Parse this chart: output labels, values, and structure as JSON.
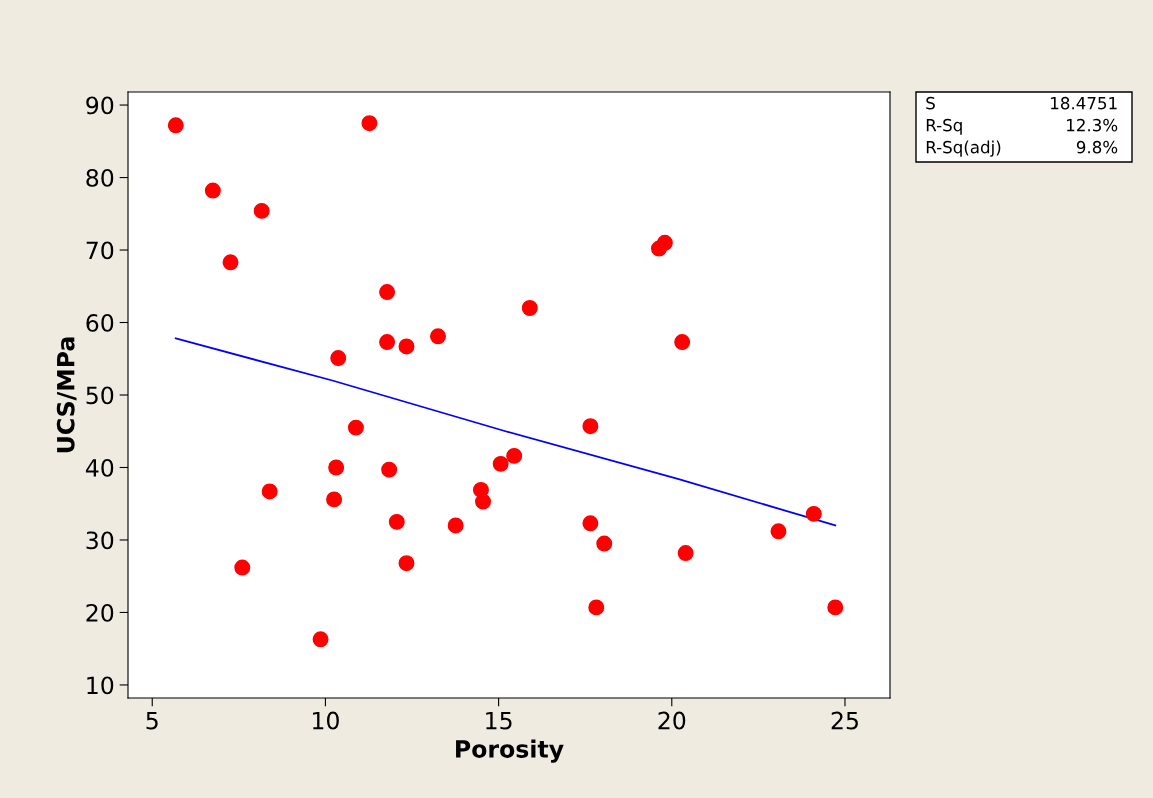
{
  "chart_data": {
    "type": "scatter",
    "xlabel": "Porosity",
    "ylabel": "UCS/MPa",
    "xlim": [
      4.3,
      26.3
    ],
    "ylim": [
      8.2,
      91.8
    ],
    "xticks": [
      5,
      10,
      15,
      20,
      25
    ],
    "yticks": [
      10,
      20,
      30,
      40,
      50,
      60,
      70,
      80,
      90
    ],
    "grid": false,
    "legend": false,
    "series": [
      {
        "marker": "circle",
        "color": "#ff0000",
        "x": [
          5.68,
          6.75,
          7.26,
          8.16,
          8.39,
          7.6,
          9.86,
          10.25,
          10.31,
          10.37,
          10.88,
          11.27,
          11.78,
          11.78,
          11.84,
          12.06,
          12.34,
          12.34,
          13.25,
          13.76,
          14.49,
          14.55,
          15.06,
          15.45,
          15.9,
          17.65,
          17.65,
          17.82,
          18.05,
          19.63,
          19.8,
          20.3,
          20.4,
          23.08,
          24.1,
          24.72
        ],
        "values": [
          87.2,
          78.2,
          68.3,
          75.4,
          36.7,
          26.2,
          16.3,
          35.6,
          40.0,
          55.1,
          45.5,
          87.5,
          64.2,
          57.3,
          39.7,
          32.5,
          56.7,
          26.8,
          58.1,
          32.0,
          36.9,
          35.3,
          40.5,
          41.6,
          62.0,
          45.7,
          32.3,
          20.7,
          29.5,
          70.2,
          71.0,
          57.3,
          28.2,
          31.2,
          33.6,
          20.7
        ]
      },
      {
        "type": "line",
        "color": "#0000ff",
        "x": [
          5.68,
          10.2,
          15.2,
          20.2,
          24.72
        ],
        "values": [
          57.8,
          52.0,
          45.0,
          38.4,
          32.0
        ]
      }
    ],
    "annotations": [
      "S",
      "18.4751",
      "R-Sq",
      "12.3%",
      "R-Sq(adj)",
      "9.8%"
    ]
  }
}
